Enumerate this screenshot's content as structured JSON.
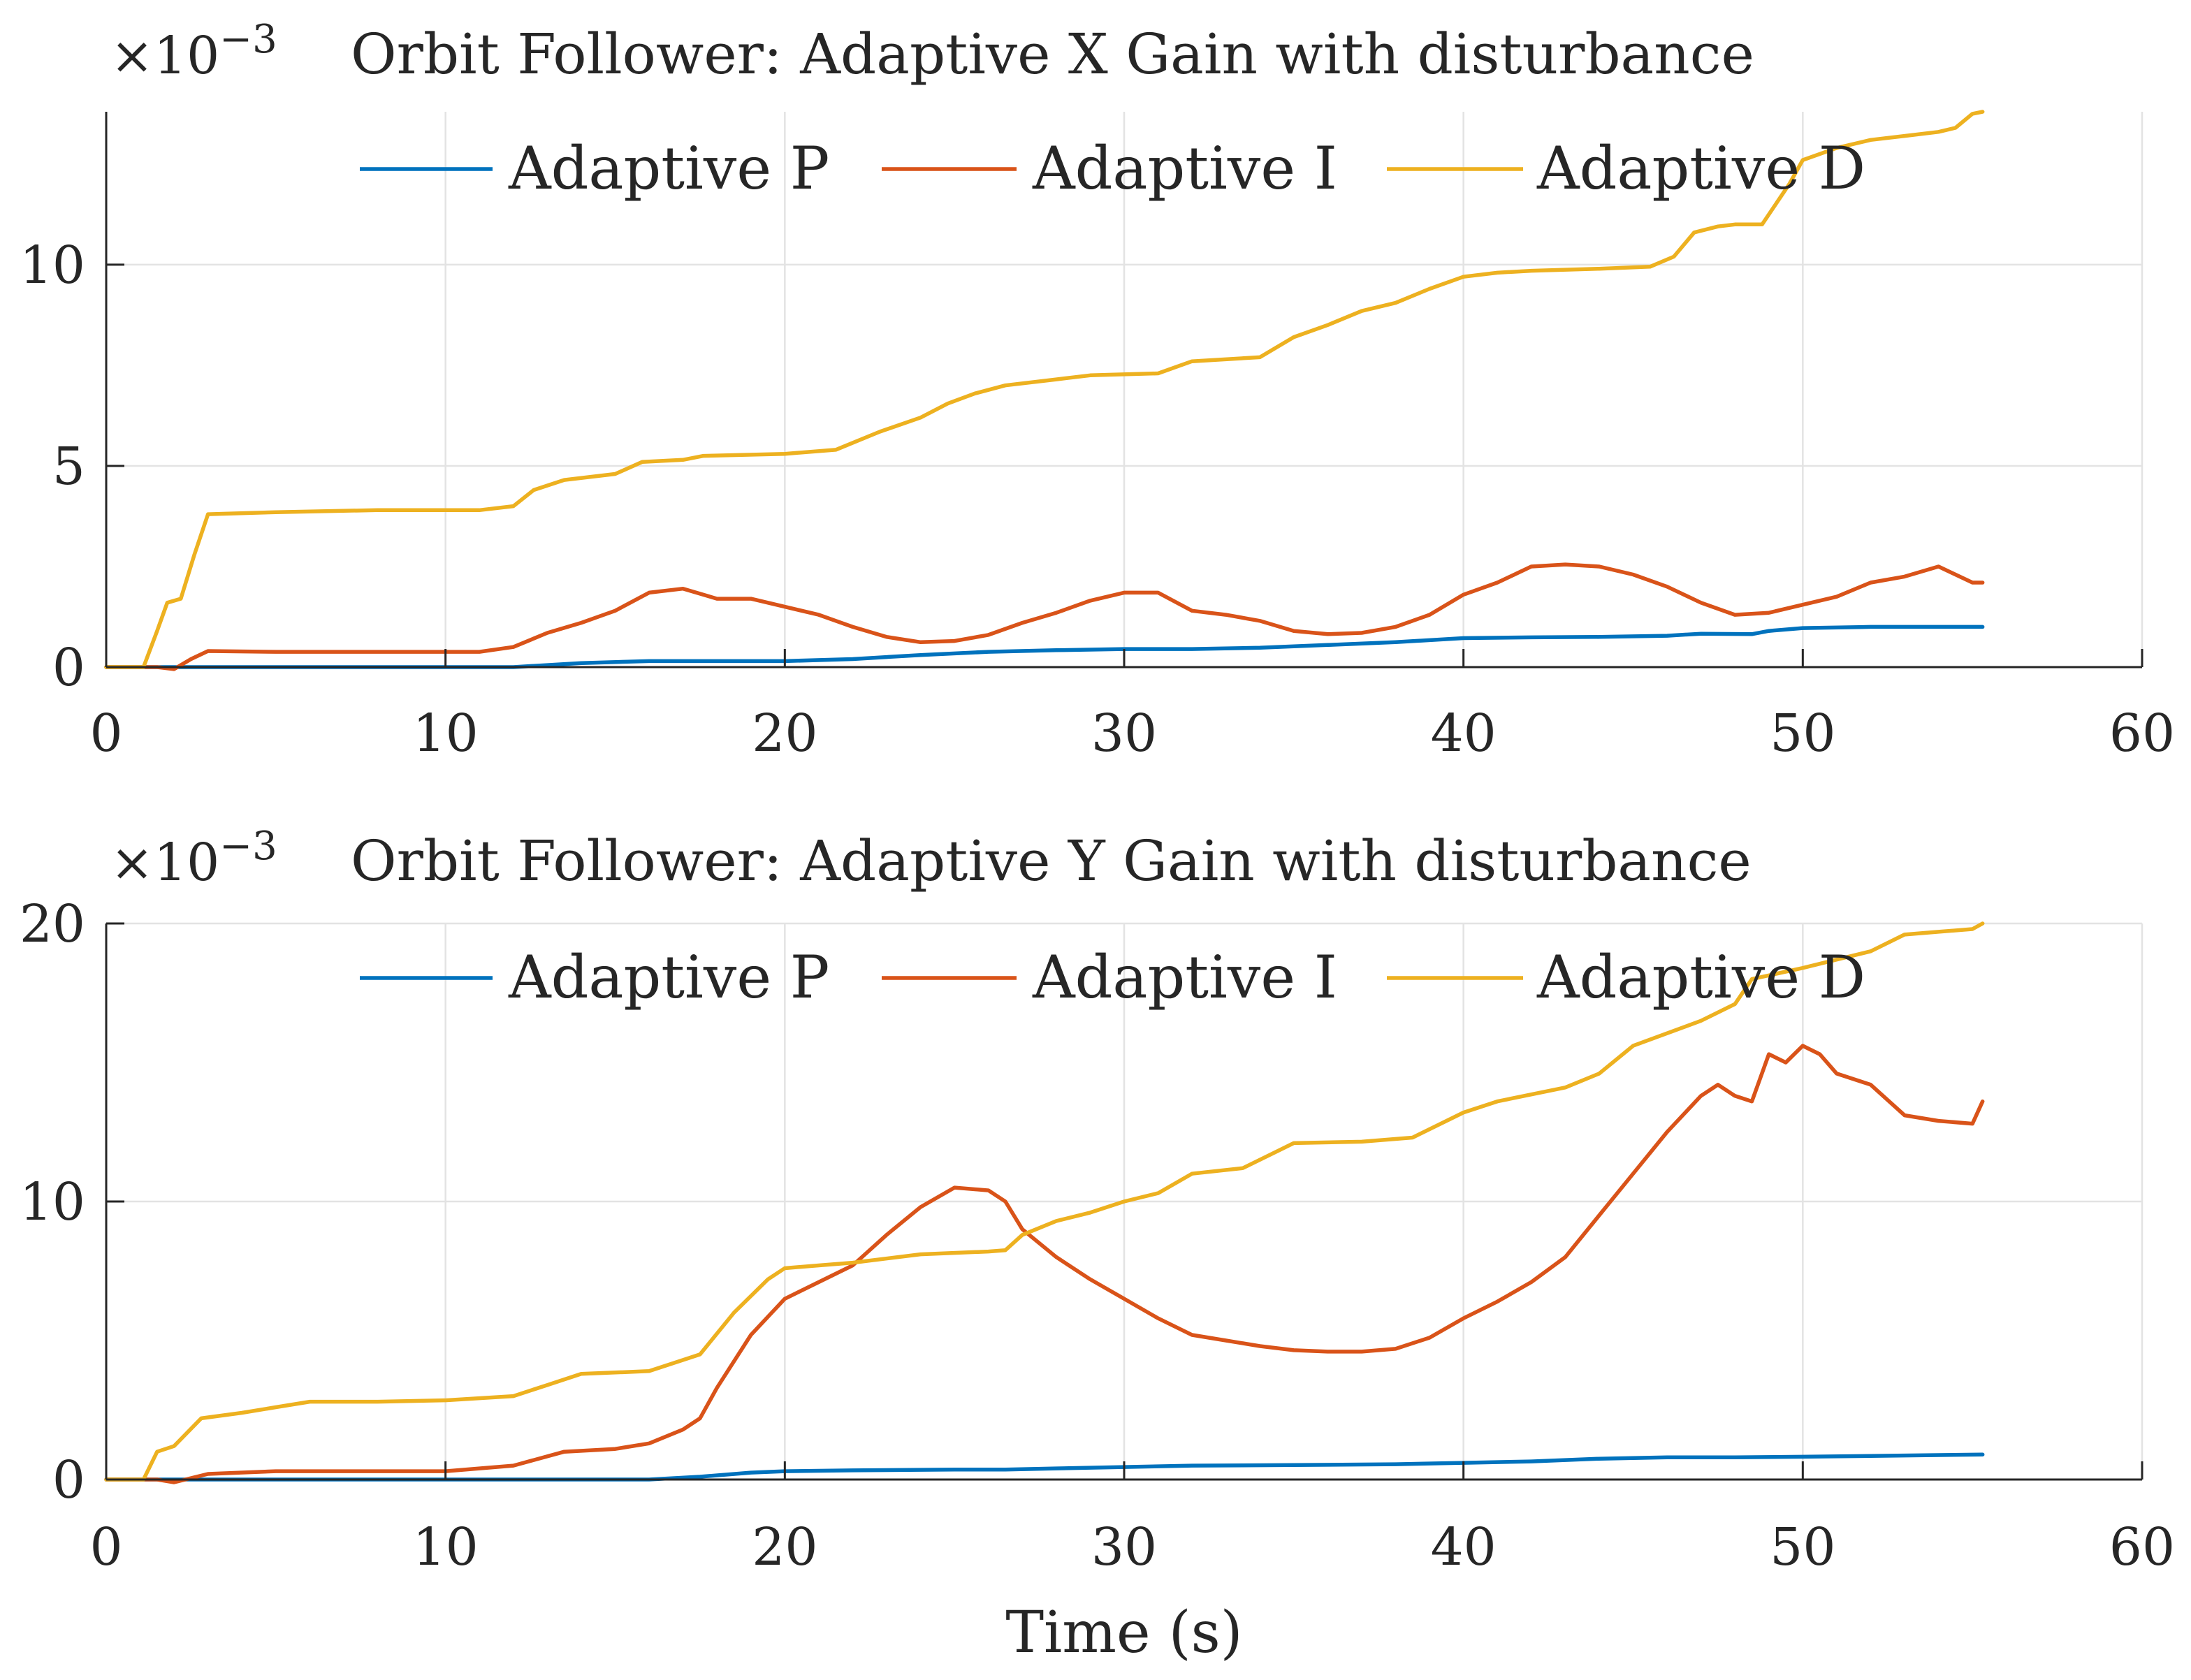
{
  "chart_data": [
    {
      "type": "line",
      "title": "Orbit Follower: Adaptive X Gain with disturbance",
      "multiplier_label": "×10",
      "multiplier_exponent": "−3",
      "xlabel": "",
      "ylabel": "",
      "xlim": [
        0,
        60
      ],
      "ylim": [
        0,
        13.8
      ],
      "xticks": [
        "0",
        "10",
        "20",
        "30",
        "40",
        "50",
        "60"
      ],
      "yticks": [
        "0",
        "5",
        "10"
      ],
      "legend": [
        "Adaptive P",
        "Adaptive I",
        "Adaptive D"
      ],
      "legend_position": "top",
      "grid": true,
      "series": [
        {
          "name": "Adaptive P",
          "color": "#0072BD",
          "x": [
            0,
            10,
            12,
            14,
            16,
            18,
            20,
            22,
            24,
            26,
            28,
            30,
            32,
            34,
            36,
            38,
            40,
            42,
            44,
            46,
            47,
            48.5,
            49,
            50,
            52,
            55.3
          ],
          "y": [
            0,
            0,
            0,
            0.1,
            0.15,
            0.15,
            0.15,
            0.2,
            0.3,
            0.38,
            0.42,
            0.45,
            0.45,
            0.48,
            0.55,
            0.62,
            0.72,
            0.74,
            0.75,
            0.78,
            0.83,
            0.82,
            0.9,
            0.97,
            1.0,
            1.0
          ]
        },
        {
          "name": "Adaptive I",
          "color": "#D95319",
          "x": [
            0,
            1.5,
            2,
            2.5,
            3,
            5,
            8,
            11,
            12,
            13,
            14,
            15,
            16,
            17,
            18,
            19,
            20,
            21,
            22,
            23,
            24,
            25,
            26,
            27,
            28,
            29,
            30,
            31,
            32,
            33,
            34,
            35,
            36,
            37,
            38,
            39,
            40,
            41,
            42,
            43,
            44,
            45,
            46,
            47,
            48,
            49,
            50,
            51,
            52,
            53,
            54,
            55,
            55.3
          ],
          "y": [
            0,
            0,
            -0.05,
            0.2,
            0.4,
            0.38,
            0.38,
            0.38,
            0.5,
            0.85,
            1.1,
            1.4,
            1.85,
            1.95,
            1.7,
            1.7,
            1.5,
            1.3,
            1.0,
            0.75,
            0.62,
            0.65,
            0.8,
            1.1,
            1.35,
            1.65,
            1.85,
            1.85,
            1.4,
            1.3,
            1.15,
            0.9,
            0.82,
            0.85,
            1.0,
            1.3,
            1.8,
            2.1,
            2.5,
            2.55,
            2.5,
            2.3,
            2.0,
            1.6,
            1.3,
            1.35,
            1.55,
            1.75,
            2.1,
            2.25,
            2.5,
            2.1,
            2.1
          ]
        },
        {
          "name": "Adaptive D",
          "color": "#EDB120",
          "x": [
            0,
            1.1,
            1.5,
            1.8,
            2.2,
            2.6,
            3,
            5,
            8,
            11,
            12,
            12.6,
            13.5,
            15,
            15.8,
            17,
            17.6,
            20,
            21.5,
            22.8,
            24,
            24.8,
            25.6,
            26.5,
            28,
            29,
            31,
            32,
            34,
            35,
            36,
            37,
            38,
            39,
            40,
            41,
            42,
            44,
            45.5,
            46.2,
            46.8,
            47.5,
            48,
            48.8,
            49.2,
            49.6,
            50,
            51,
            52,
            53,
            54,
            54.5,
            55,
            55.3
          ],
          "y": [
            0,
            0,
            0.9,
            1.6,
            1.7,
            2.8,
            3.8,
            3.85,
            3.9,
            3.9,
            4.0,
            4.4,
            4.65,
            4.8,
            5.1,
            5.15,
            5.25,
            5.3,
            5.4,
            5.85,
            6.2,
            6.55,
            6.8,
            7.0,
            7.15,
            7.25,
            7.3,
            7.6,
            7.7,
            8.2,
            8.5,
            8.85,
            9.05,
            9.4,
            9.7,
            9.8,
            9.85,
            9.9,
            9.95,
            10.2,
            10.8,
            10.95,
            11.0,
            11.0,
            11.5,
            12.0,
            12.6,
            12.9,
            13.1,
            13.2,
            13.3,
            13.4,
            13.75,
            13.8
          ]
        }
      ]
    },
    {
      "type": "line",
      "title": "Orbit Follower: Adaptive Y Gain with disturbance",
      "multiplier_label": "×10",
      "multiplier_exponent": "−3",
      "xlabel": "Time (s)",
      "ylabel": "",
      "xlim": [
        0,
        60
      ],
      "ylim": [
        0,
        20
      ],
      "xticks": [
        "0",
        "10",
        "20",
        "30",
        "40",
        "50",
        "60"
      ],
      "yticks": [
        "0",
        "10",
        "20"
      ],
      "legend": [
        "Adaptive P",
        "Adaptive I",
        "Adaptive D"
      ],
      "legend_position": "top",
      "grid": true,
      "series": [
        {
          "name": "Adaptive P",
          "color": "#0072BD",
          "x": [
            0,
            10,
            16,
            17.5,
            19,
            20,
            22,
            25,
            26.5,
            28,
            30,
            32,
            35,
            38,
            40,
            42,
            44,
            46,
            48,
            50,
            52,
            55.3
          ],
          "y": [
            0,
            0,
            0,
            0.1,
            0.25,
            0.3,
            0.33,
            0.36,
            0.36,
            0.4,
            0.45,
            0.5,
            0.52,
            0.55,
            0.6,
            0.65,
            0.75,
            0.8,
            0.8,
            0.82,
            0.85,
            0.9
          ]
        },
        {
          "name": "Adaptive I",
          "color": "#D95319",
          "x": [
            0,
            1.5,
            2,
            3,
            5,
            8,
            10,
            12,
            13.5,
            15,
            16,
            17,
            17.5,
            18,
            19,
            20,
            21,
            22,
            23,
            24,
            25,
            26,
            26.5,
            27,
            28,
            29,
            30,
            31,
            32,
            33,
            34,
            35,
            36,
            37,
            38,
            39,
            40,
            41,
            42,
            43,
            44,
            45,
            46,
            47,
            47.5,
            48,
            48.5,
            49,
            49.5,
            50,
            50.5,
            51,
            52,
            53,
            54,
            55,
            55.3
          ],
          "y": [
            0,
            0,
            -0.1,
            0.2,
            0.3,
            0.3,
            0.3,
            0.5,
            1.0,
            1.1,
            1.3,
            1.8,
            2.2,
            3.3,
            5.2,
            6.5,
            7.1,
            7.7,
            8.8,
            9.8,
            10.5,
            10.4,
            10.0,
            9.0,
            8.0,
            7.2,
            6.5,
            5.8,
            5.2,
            5.0,
            4.8,
            4.65,
            4.6,
            4.6,
            4.7,
            5.1,
            5.8,
            6.4,
            7.1,
            8.0,
            9.5,
            11.0,
            12.5,
            13.8,
            14.2,
            13.8,
            13.6,
            15.3,
            15.0,
            15.6,
            15.3,
            14.6,
            14.2,
            13.1,
            12.9,
            12.8,
            13.6
          ]
        },
        {
          "name": "Adaptive D",
          "color": "#EDB120",
          "x": [
            0,
            1.1,
            1.5,
            2,
            2.8,
            4,
            5,
            6,
            8,
            10,
            12,
            13,
            14,
            16,
            17,
            17.5,
            18.5,
            19.5,
            20,
            21,
            22,
            24,
            26,
            26.5,
            27,
            28,
            29,
            30,
            31,
            32,
            33.5,
            35,
            37,
            38.5,
            40,
            41,
            43,
            44,
            45,
            47,
            48,
            48.5,
            50,
            51,
            52,
            53,
            54,
            55,
            55.3
          ],
          "y": [
            0,
            0,
            1.0,
            1.2,
            2.2,
            2.4,
            2.6,
            2.8,
            2.8,
            2.85,
            3.0,
            3.4,
            3.8,
            3.9,
            4.3,
            4.5,
            6.0,
            7.2,
            7.6,
            7.7,
            7.8,
            8.1,
            8.2,
            8.25,
            8.8,
            9.3,
            9.6,
            10.0,
            10.3,
            11.0,
            11.2,
            12.1,
            12.15,
            12.3,
            13.2,
            13.6,
            14.1,
            14.6,
            15.6,
            16.5,
            17.1,
            18.0,
            18.4,
            18.7,
            19.0,
            19.6,
            19.7,
            19.8,
            20.0
          ]
        }
      ]
    }
  ]
}
